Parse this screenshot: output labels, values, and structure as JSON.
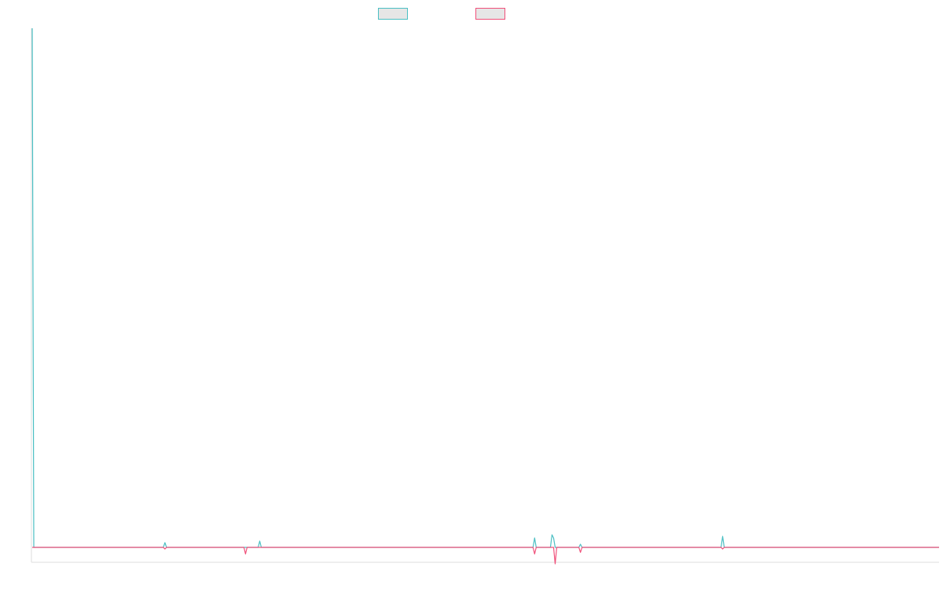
{
  "colors": {
    "series_1": "#4bbfc3",
    "series_2": "#f0507a",
    "axis": "#dddddd",
    "legend_fill": "#e6e6e6"
  },
  "chart_data": {
    "type": "line",
    "title": "",
    "xlabel": "",
    "ylabel": "",
    "grid": false,
    "legend_position": "top-center",
    "x_count": 575,
    "ylim": [
      -1,
      33
    ],
    "series": [
      {
        "color": "#4bbfc3",
        "points": [
          [
            0,
            33
          ],
          [
            1,
            0
          ],
          [
            83,
            0
          ],
          [
            84,
            0.3
          ],
          [
            85,
            0
          ],
          [
            143,
            0
          ],
          [
            144,
            0.4
          ],
          [
            145,
            0
          ],
          [
            317,
            0
          ],
          [
            318,
            0.6
          ],
          [
            319,
            0
          ],
          [
            328,
            0
          ],
          [
            329,
            0.8
          ],
          [
            330,
            0.6
          ],
          [
            331,
            0
          ],
          [
            346,
            0
          ],
          [
            347,
            0.2
          ],
          [
            348,
            0
          ],
          [
            436,
            0
          ],
          [
            437,
            0.7
          ],
          [
            438,
            0
          ],
          [
            574,
            0
          ]
        ]
      },
      {
        "color": "#f0507a",
        "points": [
          [
            0,
            0
          ],
          [
            83,
            0
          ],
          [
            84,
            -0.1
          ],
          [
            85,
            0
          ],
          [
            134,
            0
          ],
          [
            135,
            -0.4
          ],
          [
            136,
            0
          ],
          [
            317,
            0
          ],
          [
            318,
            -0.4
          ],
          [
            319,
            0
          ],
          [
            330,
            0
          ],
          [
            331,
            -1.0
          ],
          [
            332,
            0
          ],
          [
            346,
            0
          ],
          [
            347,
            -0.3
          ],
          [
            348,
            0
          ],
          [
            436,
            0
          ],
          [
            437,
            -0.1
          ],
          [
            438,
            0
          ],
          [
            574,
            0
          ]
        ]
      }
    ]
  }
}
